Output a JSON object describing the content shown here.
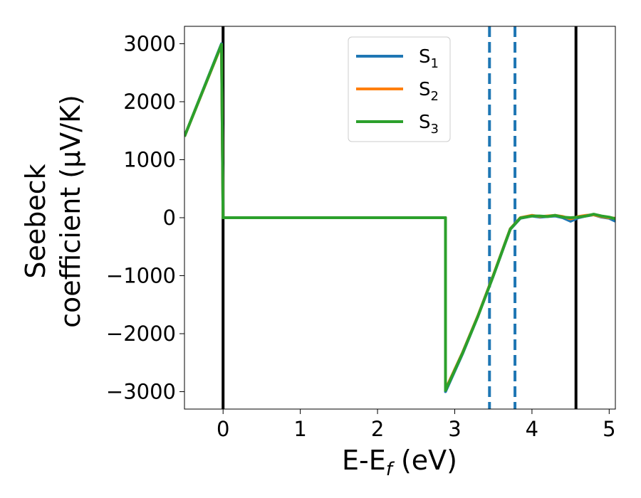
{
  "chart_data": {
    "type": "line",
    "xlabel": {
      "main": "E-E",
      "sub": "f",
      "tail": " (eV)"
    },
    "ylabel": {
      "line1": "Seebeck",
      "line2": "coefficient  (μV/K)"
    },
    "xlim": [
      -0.5,
      5.08
    ],
    "ylim": [
      -3300,
      3300
    ],
    "x_ticks": [
      0,
      1,
      2,
      3,
      4,
      5
    ],
    "x_tick_labels": [
      "0",
      "1",
      "2",
      "3",
      "4",
      "5"
    ],
    "y_ticks": [
      3000,
      2000,
      1000,
      0,
      -1000,
      -2000,
      -3000
    ],
    "y_tick_labels": [
      "3000",
      "2000",
      "1000",
      "0",
      "−1000",
      "−2000",
      "−3000"
    ],
    "grid": false,
    "legend_position": "top-center",
    "vertical_lines": [
      {
        "x": 0.0,
        "style": "solid",
        "color": "#000000"
      },
      {
        "x": 4.57,
        "style": "solid",
        "color": "#000000"
      },
      {
        "x": 3.45,
        "style": "dashed",
        "color": "#1f77b4"
      },
      {
        "x": 3.78,
        "style": "dashed",
        "color": "#1f77b4"
      }
    ],
    "series": [
      {
        "name": "S",
        "sub": "1",
        "color": "#1f77b4",
        "x": [
          -0.5,
          -0.02,
          0.0,
          2.88,
          2.88,
          3.1,
          3.3,
          3.5,
          3.65,
          3.72,
          3.85,
          4.0,
          4.1,
          4.2,
          4.3,
          4.4,
          4.5,
          4.6,
          4.7,
          4.8,
          4.9,
          5.0,
          5.08
        ],
        "y": [
          1400,
          3000,
          0,
          0,
          -3000,
          -2350,
          -1700,
          -1000,
          -450,
          -200,
          -10,
          30,
          10,
          20,
          30,
          0,
          -60,
          0,
          30,
          50,
          10,
          -10,
          -60
        ]
      },
      {
        "name": "S",
        "sub": "2",
        "color": "#ff7f0e",
        "x": [
          -0.5,
          -0.02,
          0.0,
          2.88,
          2.88,
          3.1,
          3.3,
          3.5,
          3.65,
          3.72,
          3.85,
          4.0,
          4.1,
          4.2,
          4.3,
          4.4,
          4.5,
          4.6,
          4.7,
          4.8,
          4.9,
          5.0,
          5.08
        ],
        "y": [
          1400,
          2980,
          0,
          0,
          -2960,
          -2330,
          -1690,
          -990,
          -440,
          -190,
          0,
          40,
          20,
          30,
          40,
          20,
          -20,
          20,
          40,
          50,
          20,
          0,
          -10
        ]
      },
      {
        "name": "S",
        "sub": "3",
        "color": "#2ca02c",
        "x": [
          -0.5,
          -0.02,
          0.0,
          2.88,
          2.88,
          3.1,
          3.3,
          3.5,
          3.65,
          3.72,
          3.85,
          4.0,
          4.1,
          4.2,
          4.3,
          4.4,
          4.5,
          4.6,
          4.7,
          4.8,
          4.9,
          5.0,
          5.08
        ],
        "y": [
          1400,
          2990,
          0,
          0,
          -2980,
          -2340,
          -1700,
          -1000,
          -445,
          -195,
          -5,
          30,
          30,
          20,
          40,
          10,
          0,
          10,
          30,
          60,
          30,
          10,
          -20
        ]
      }
    ]
  }
}
